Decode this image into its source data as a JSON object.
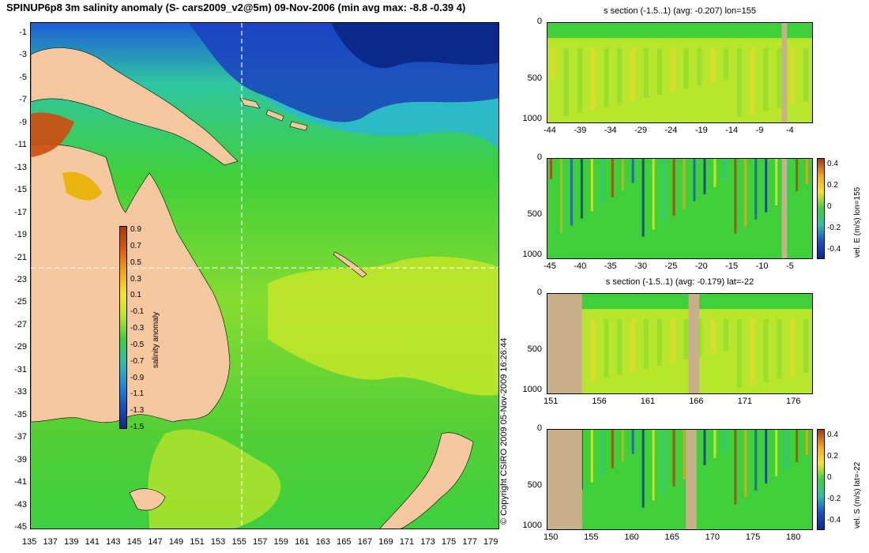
{
  "title": "SPINUP6p8 3m salinity anomaly (S- cars2009_v2@5m) 09-Nov-2006 (min avg max: -8.8 -0.39 4)",
  "copyright": "© Copyright CSIRO 2009   05-Nov-2009 16:26:44",
  "map": {
    "lat_labels": [
      "-1",
      "-3",
      "-5",
      "-7",
      "-9",
      "-11",
      "-13",
      "-15",
      "-17",
      "-19",
      "-21",
      "-23",
      "-25",
      "-27",
      "-29",
      "-31",
      "-33",
      "-35",
      "-37",
      "-39",
      "-41",
      "-43",
      "-45"
    ],
    "lon_labels": [
      "135",
      "137",
      "139",
      "141",
      "143",
      "145",
      "147",
      "149",
      "151",
      "153",
      "155",
      "157",
      "159",
      "161",
      "163",
      "165",
      "167",
      "169",
      "171",
      "173",
      "175",
      "177",
      "179"
    ],
    "colorbar": {
      "label": "salinity anomaly",
      "ticks": [
        "0.9",
        "0.7",
        "0.5",
        "0.3",
        "0.1",
        "-0.1",
        "-0.3",
        "-0.5",
        "-0.7",
        "-0.9",
        "-1.1",
        "-1.3",
        "-1.5"
      ]
    },
    "section_lon": 155,
    "section_lat": -22
  },
  "panels": [
    {
      "title": "s section (-1.5..1) (avg: -0.207) lon=155",
      "y_ticks": [
        "0",
        "500",
        "1000"
      ],
      "x_ticks": [
        "-44",
        "-39",
        "-34",
        "-29",
        "-24",
        "-19",
        "-14",
        "-9",
        "-4"
      ],
      "side_label": "",
      "cbar_ticks": []
    },
    {
      "title": "",
      "y_ticks": [
        "0",
        "500",
        "1000"
      ],
      "x_ticks": [
        "-45",
        "-40",
        "-35",
        "-30",
        "-25",
        "-20",
        "-15",
        "-10",
        "-5"
      ],
      "side_label": "vel. E (m/s) lon=155",
      "cbar_ticks": [
        "0.4",
        "0.2",
        "0",
        "-0.2",
        "-0.4"
      ]
    },
    {
      "title": "s section (-1.5..1) (avg: -0.179) lat=-22",
      "y_ticks": [
        "0",
        "500",
        "1000"
      ],
      "x_ticks": [
        "151",
        "156",
        "161",
        "166",
        "171",
        "176"
      ],
      "side_label": "",
      "cbar_ticks": []
    },
    {
      "title": "",
      "y_ticks": [
        "0",
        "500",
        "1000"
      ],
      "x_ticks": [
        "150",
        "155",
        "160",
        "165",
        "170",
        "175",
        "180"
      ],
      "side_label": "vel. S (m/s) lat=-22",
      "cbar_ticks": [
        "0.4",
        "0.2",
        "0",
        "-0.2",
        "-0.4"
      ]
    }
  ],
  "colors": {
    "ocean_base": "#3fcf3a",
    "land": "#f6c8a0",
    "section_land": "#c8b08a",
    "salinity_low": "#0b2a8c",
    "salinity_high": "#c2300e"
  }
}
